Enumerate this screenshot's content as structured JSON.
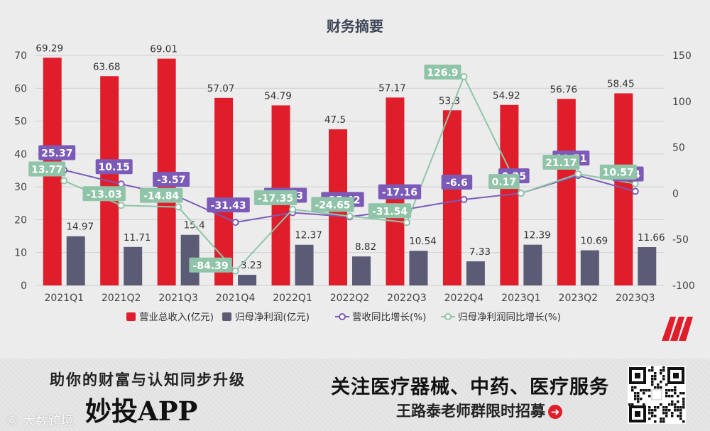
{
  "chart_data": {
    "type": "bar",
    "title": "财务摘要",
    "categories": [
      "2021Q1",
      "2021Q2",
      "2021Q3",
      "2021Q4",
      "2022Q1",
      "2022Q2",
      "2022Q3",
      "2022Q4",
      "2023Q1",
      "2023Q2",
      "2023Q3"
    ],
    "ylim": [
      0,
      70
    ],
    "y_ticks": [
      0,
      10,
      20,
      30,
      40,
      50,
      60,
      70
    ],
    "y2lim": [
      -100,
      150
    ],
    "y2_ticks": [
      -100,
      -50,
      0,
      50,
      100,
      150
    ],
    "grid": true,
    "legend_position": "bottom",
    "series": [
      {
        "name": "营业总收入(亿元)",
        "type": "bar",
        "axis": "left",
        "color": "#e01e2b",
        "values": [
          69.29,
          63.68,
          69.01,
          57.07,
          54.79,
          47.5,
          57.17,
          53.3,
          54.92,
          56.76,
          58.45
        ]
      },
      {
        "name": "归母净利润(亿元)",
        "type": "bar",
        "axis": "left",
        "color": "#5b5b75",
        "values": [
          14.97,
          11.71,
          15.4,
          3.23,
          12.37,
          8.82,
          10.54,
          7.33,
          12.39,
          10.69,
          11.66
        ]
      },
      {
        "name": "营收同比增长(%)",
        "type": "line",
        "axis": "right",
        "color": "#7b5ab8",
        "values": [
          25.37,
          10.15,
          -3.57,
          -31.43,
          -20.93,
          -25.42,
          -17.16,
          -6.6,
          0.25,
          19.51,
          2.24
        ],
        "labels": [
          "25.37",
          "10.15",
          "-3.57",
          "-31.43",
          "-20.93",
          "-25.42",
          "-17.16",
          "-6.6",
          "0.25",
          "19.51",
          "2.24"
        ]
      },
      {
        "name": "归母净利润同比增长(%)",
        "type": "line",
        "axis": "right",
        "color": "#8fc4a8",
        "values": [
          13.77,
          -13.03,
          -14.84,
          -84.39,
          -17.35,
          -24.65,
          -31.54,
          126.9,
          0.17,
          21.17,
          10.57
        ],
        "labels": [
          "13.77",
          "-13.03",
          "-14.84",
          "-84.39",
          "-17.35",
          "-24.65",
          "-31.54",
          "126.9",
          "0.17",
          "21.17",
          "10.57"
        ]
      }
    ]
  },
  "banner": {
    "slogan": "助你的财富与认知同步升级",
    "app_name": "妙投APP",
    "watermark": "© 大数跨境",
    "headline": "关注医疗器械、中药、医疗服务",
    "subline": "王路泰老师群限时招募",
    "arrow_icon": "arrow-right-circle-icon",
    "qr_icon": "qr-code-icon",
    "logo_icon": "brand-logo-icon"
  }
}
